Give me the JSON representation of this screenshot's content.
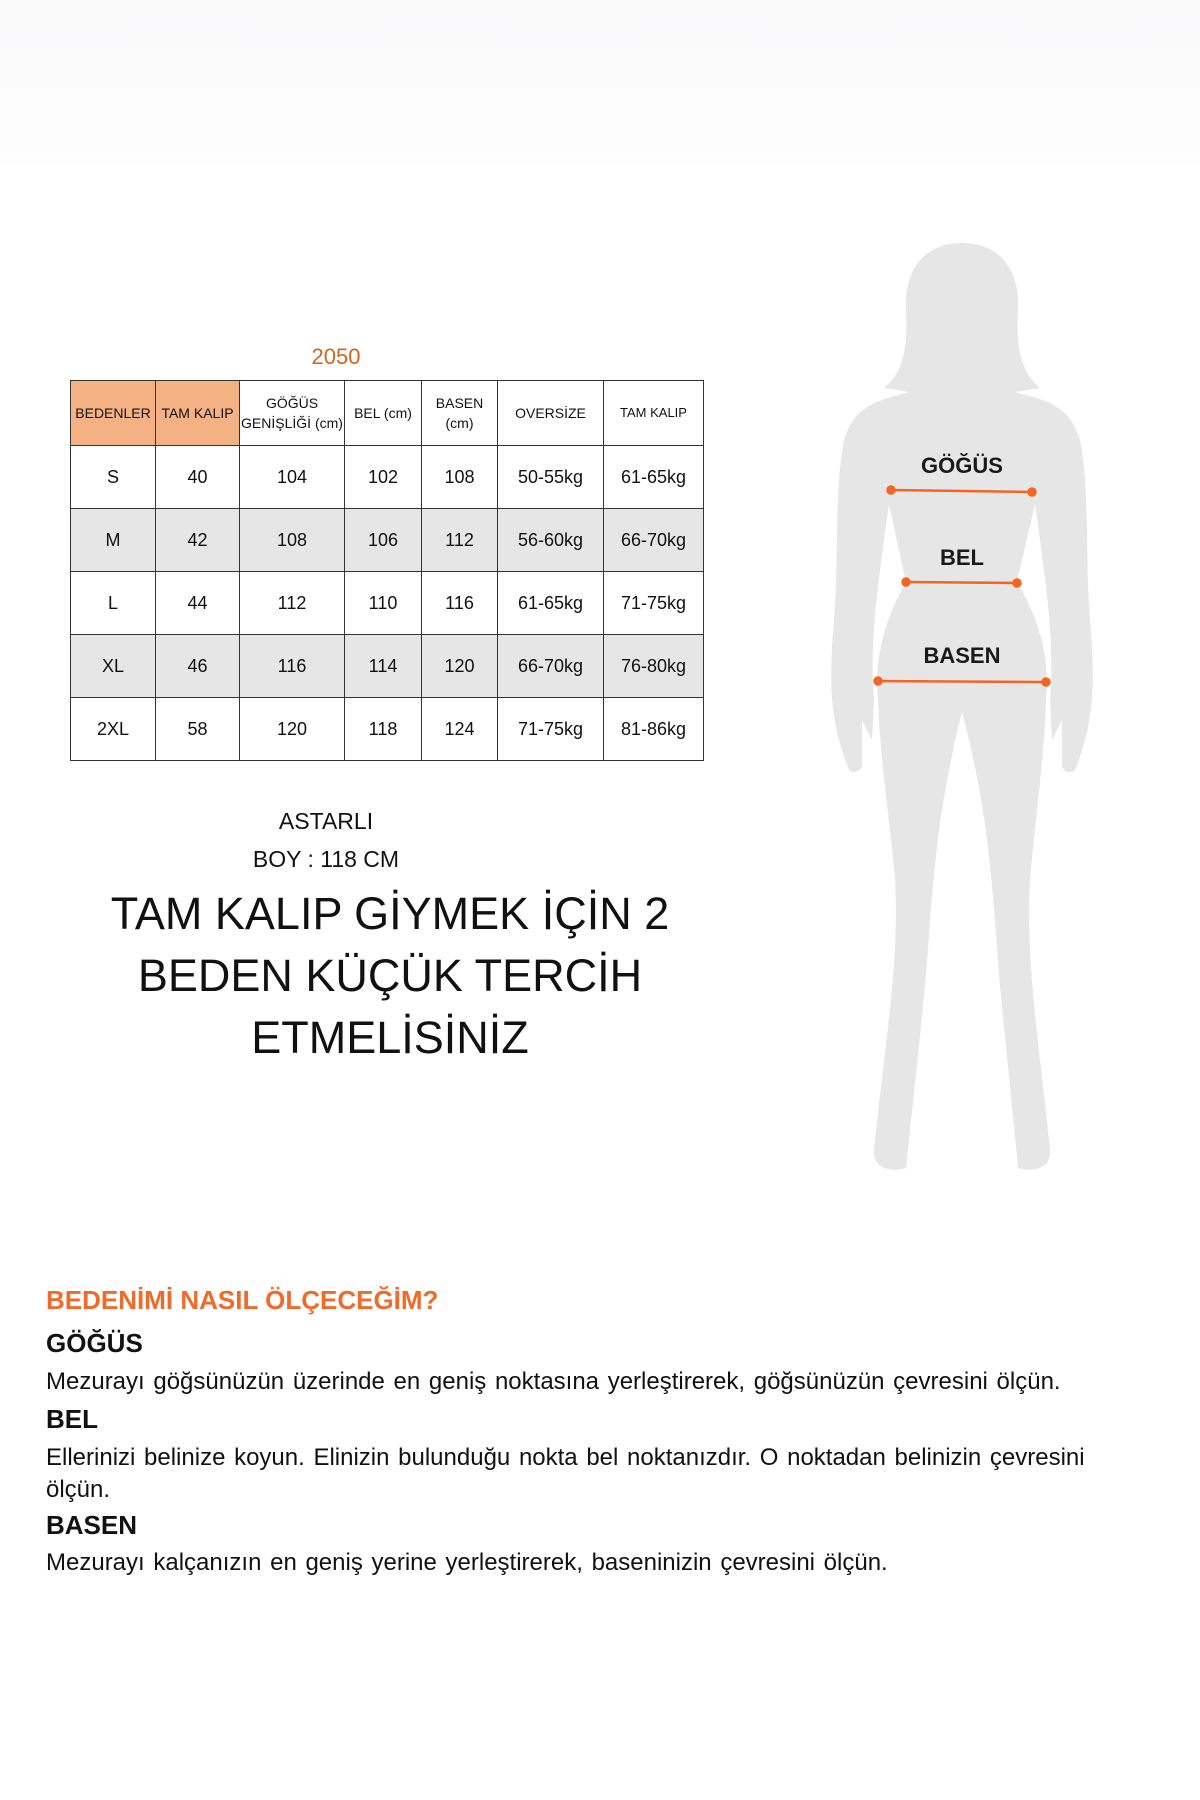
{
  "product_code": "2050",
  "table": {
    "headers": [
      "BEDENLER",
      "TAM KALIP",
      "GÖĞÜS GENİŞLİĞİ (cm)",
      "BEL (cm)",
      "BASEN (cm)",
      "OVERSİZE",
      "TAM KALIP"
    ],
    "highlight_color": "#f4b183",
    "rows": [
      [
        "S",
        "40",
        "104",
        "102",
        "108",
        "50-55kg",
        "61-65kg"
      ],
      [
        "M",
        "42",
        "108",
        "106",
        "112",
        "56-60kg",
        "66-70kg"
      ],
      [
        "L",
        "44",
        "112",
        "110",
        "116",
        "61-65kg",
        "71-75kg"
      ],
      [
        "XL",
        "46",
        "116",
        "114",
        "120",
        "66-70kg",
        "76-80kg"
      ],
      [
        "2XL",
        "58",
        "120",
        "118",
        "124",
        "71-75kg",
        "81-86kg"
      ]
    ]
  },
  "notes": {
    "lining": "ASTARLI",
    "length": "BOY : 118 CM",
    "advice_lines": [
      "TAM KALIP GİYMEK İÇİN 2",
      "BEDEN KÜÇÜK TERCİH",
      "ETMELİSİNİZ"
    ]
  },
  "figure": {
    "labels": [
      "GÖĞÜS",
      "BEL",
      "BASEN"
    ],
    "line_color": "#f26522",
    "silhouette_color": "#e6e6e6"
  },
  "guide": {
    "title": "BEDENİMİ NASIL ÖLÇECEĞİM?",
    "accent_color": "#f26a2a",
    "sections": [
      {
        "heading": "GÖĞÜS",
        "text": "Mezurayı göğsünüzün üzerinde en geniş noktasına yerleştirerek, göğsünüzün çevresini ölçün."
      },
      {
        "heading": "BEL",
        "text": "Ellerinizi belinize koyun. Elinizin bulunduğu nokta bel noktanızdır. O noktadan belinizin çevresini ölçün."
      },
      {
        "heading": "BASEN",
        "text": "Mezurayı kalçanızın en geniş yerine yerleştirerek, baseninizin çevresini ölçün."
      }
    ]
  }
}
